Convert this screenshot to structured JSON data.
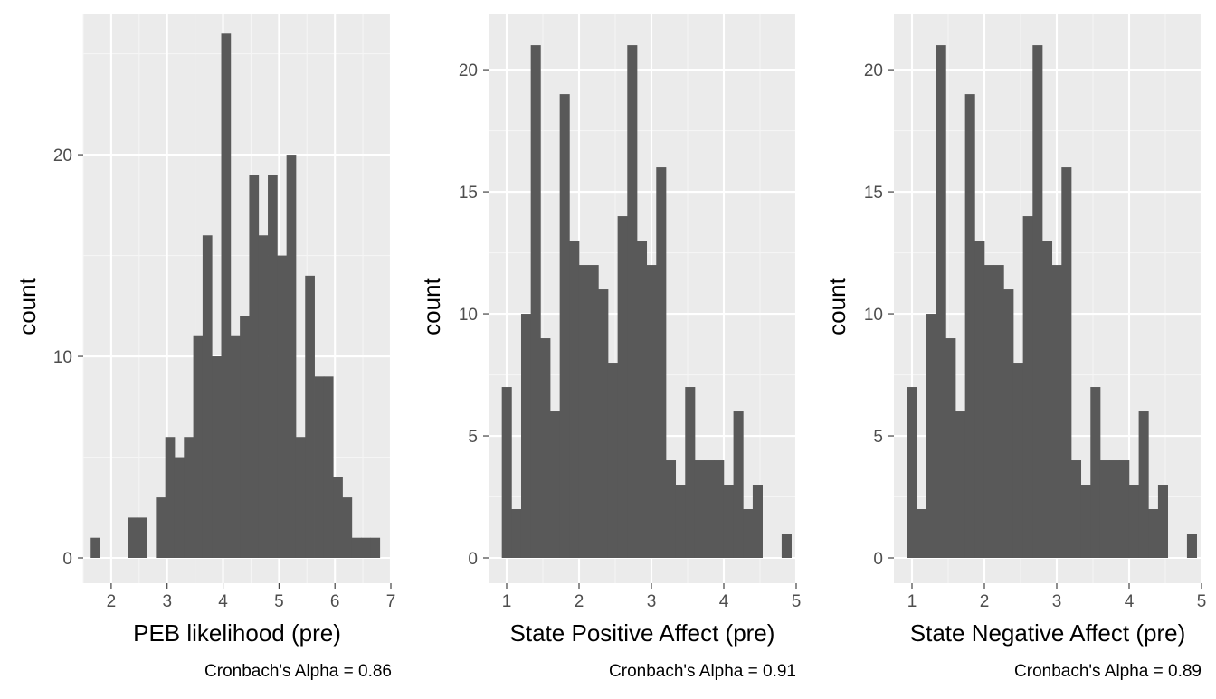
{
  "chart_data": [
    {
      "type": "histogram",
      "title": "",
      "xlabel": "PEB likelihood (pre)",
      "ylabel": "count",
      "caption": "Cronbach's Alpha =  0.86",
      "xlim": [
        1.5,
        7.0
      ],
      "ylim": [
        0,
        27
      ],
      "xticks": [
        2,
        3,
        4,
        5,
        6,
        7
      ],
      "yticks": [
        0,
        10,
        20
      ],
      "grid": true,
      "bin_start": 1.6333,
      "bin_width": 0.1667,
      "counts": [
        1,
        0,
        0,
        0,
        2,
        2,
        0,
        3,
        6,
        5,
        6,
        11,
        16,
        10,
        26,
        11,
        12,
        19,
        16,
        19,
        15,
        20,
        6,
        14,
        9,
        9,
        4,
        3,
        1,
        1,
        1
      ]
    },
    {
      "type": "histogram",
      "title": "",
      "xlabel": "State Positive Affect (pre)",
      "ylabel": "count",
      "caption": "Cronbach's Alpha =  0.91",
      "xlim": [
        0.75,
        5.0
      ],
      "ylim": [
        0,
        22.3
      ],
      "xticks": [
        1,
        2,
        3,
        4,
        5
      ],
      "yticks": [
        0,
        5,
        10,
        15,
        20
      ],
      "grid": true,
      "bin_start": 0.9333,
      "bin_width": 0.1333,
      "counts": [
        7,
        2,
        10,
        21,
        9,
        6,
        19,
        13,
        12,
        12,
        11,
        8,
        14,
        21,
        13,
        12,
        16,
        4,
        3,
        7,
        4,
        4,
        4,
        3,
        6,
        2,
        3,
        0,
        0,
        1
      ]
    },
    {
      "type": "histogram",
      "title": "",
      "xlabel": "State Negative Affect (pre)",
      "ylabel": "count",
      "caption": "Cronbach's Alpha =  0.89",
      "xlim": [
        0.75,
        5.0
      ],
      "ylim": [
        0,
        22.3
      ],
      "xticks": [
        1,
        2,
        3,
        4,
        5
      ],
      "yticks": [
        0,
        5,
        10,
        15,
        20
      ],
      "grid": true,
      "bin_start": 0.9333,
      "bin_width": 0.1333,
      "counts": [
        7,
        2,
        10,
        21,
        9,
        6,
        19,
        13,
        12,
        12,
        11,
        8,
        14,
        21,
        13,
        12,
        16,
        4,
        3,
        7,
        4,
        4,
        4,
        3,
        6,
        2,
        3,
        0,
        0,
        1
      ]
    }
  ],
  "colors": {
    "panel_background": "#EBEBEB",
    "grid_major": "#FFFFFF",
    "grid_minor": "#F5F5F5",
    "bar_fill": "#595959",
    "tick_mark": "#333333",
    "tick_text": "#4D4D4D",
    "text": "#000000"
  }
}
